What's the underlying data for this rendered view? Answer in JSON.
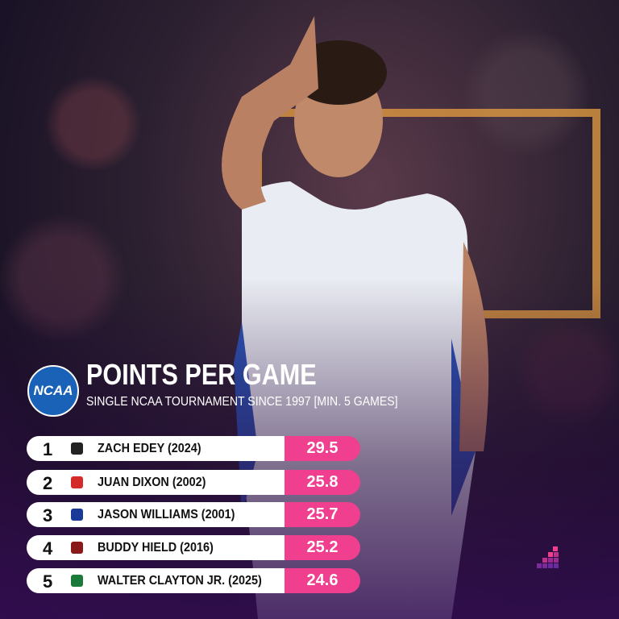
{
  "header": {
    "logo": "NCAA",
    "title": "POINTS PER GAME",
    "subtitle": "SINGLE NCAA TOURNAMENT SINCE 1997 [MIN. 5 GAMES]"
  },
  "table": {
    "rows": [
      {
        "rank": 1,
        "player": "ZACH EDEY (2024)",
        "value": 29.5
      },
      {
        "rank": 2,
        "player": "JUAN DIXON (2002)",
        "value": 25.8
      },
      {
        "rank": 3,
        "player": "JASON WILLIAMS (2001)",
        "value": 25.7
      },
      {
        "rank": 4,
        "player": "BUDDY HIELD (2016)",
        "value": 25.2
      },
      {
        "rank": 5,
        "player": "WALTER CLAYTON JR. (2025)",
        "value": 24.6
      }
    ]
  }
}
